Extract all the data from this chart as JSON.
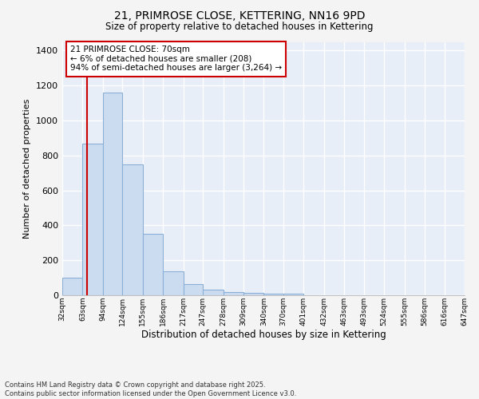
{
  "title": "21, PRIMROSE CLOSE, KETTERING, NN16 9PD",
  "subtitle": "Size of property relative to detached houses in Kettering",
  "xlabel": "Distribution of detached houses by size in Kettering",
  "ylabel": "Number of detached properties",
  "bar_color": "#ccdcf0",
  "bar_edge_color": "#8ab0d8",
  "axes_bg_color": "#e8eef8",
  "fig_bg_color": "#f4f4f4",
  "grid_color": "#ffffff",
  "annotation_text": "21 PRIMROSE CLOSE: 70sqm\n← 6% of detached houses are smaller (208)\n94% of semi-detached houses are larger (3,264) →",
  "property_line_x": 70,
  "property_line_color": "#cc0000",
  "bin_edges": [
    32,
    63,
    94,
    124,
    155,
    186,
    217,
    247,
    278,
    309,
    340,
    370,
    401,
    432,
    463,
    493,
    524,
    555,
    586,
    616,
    647
  ],
  "bar_heights": [
    100,
    870,
    1160,
    750,
    350,
    135,
    65,
    30,
    20,
    15,
    10,
    10,
    0,
    0,
    0,
    0,
    0,
    0,
    0,
    0
  ],
  "ylim": [
    0,
    1450
  ],
  "yticks": [
    0,
    200,
    400,
    600,
    800,
    1000,
    1200,
    1400
  ],
  "footer_text": "Contains HM Land Registry data © Crown copyright and database right 2025.\nContains public sector information licensed under the Open Government Licence v3.0.",
  "font_family": "DejaVu Sans"
}
